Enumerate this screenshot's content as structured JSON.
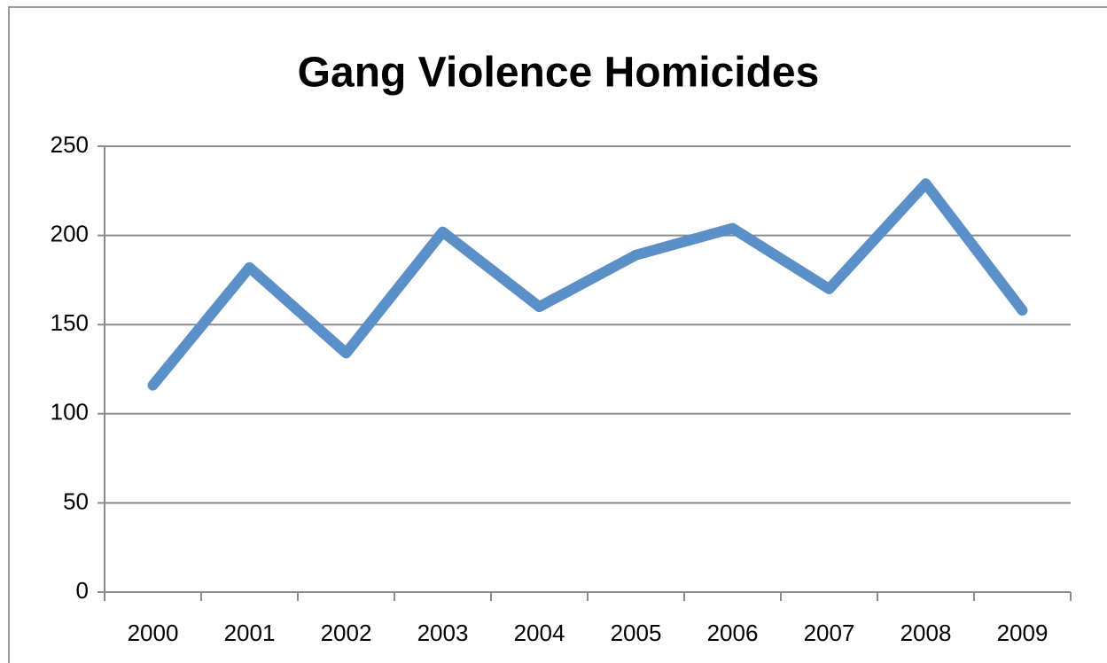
{
  "chart_data": {
    "type": "line",
    "title": "Gang Violence Homicides",
    "categories": [
      "2000",
      "2001",
      "2002",
      "2003",
      "2004",
      "2005",
      "2006",
      "2007",
      "2008",
      "2009"
    ],
    "series": [
      {
        "name": "Gang Violence Homicides",
        "color": "#5b8fc8",
        "values": [
          116,
          182,
          134,
          202,
          160,
          189,
          204,
          170,
          229,
          158
        ]
      }
    ],
    "ylim": [
      0,
      250
    ],
    "yticks": [
      0,
      50,
      100,
      150,
      200,
      250
    ],
    "grid": true,
    "legend": false
  }
}
